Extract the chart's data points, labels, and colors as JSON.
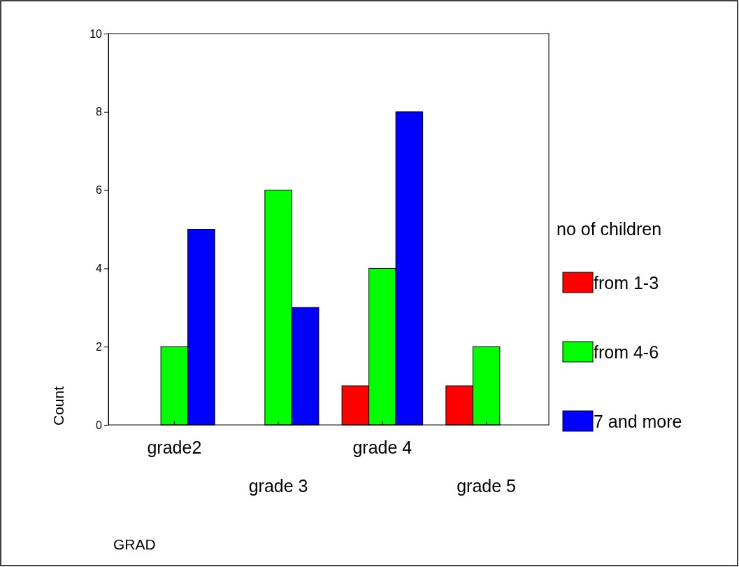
{
  "chart_data": {
    "type": "bar",
    "xlabel": "GRAD",
    "ylabel": "Count",
    "legend_title": "no of children",
    "categories": [
      "grade2",
      "grade 3",
      "grade 4",
      "grade 5"
    ],
    "series": [
      {
        "name": "from 1-3",
        "color": "#ff0000",
        "values": [
          null,
          null,
          1,
          1
        ]
      },
      {
        "name": "from 4-6",
        "color": "#00ff00",
        "values": [
          2,
          6,
          4,
          2
        ]
      },
      {
        "name": "7 and more",
        "color": "#0000ff",
        "values": [
          5,
          3,
          8,
          null
        ]
      }
    ],
    "ylim": [
      0,
      10
    ],
    "yticks": [
      0,
      2,
      4,
      6,
      8,
      10
    ],
    "grid": false,
    "legend": "right"
  }
}
